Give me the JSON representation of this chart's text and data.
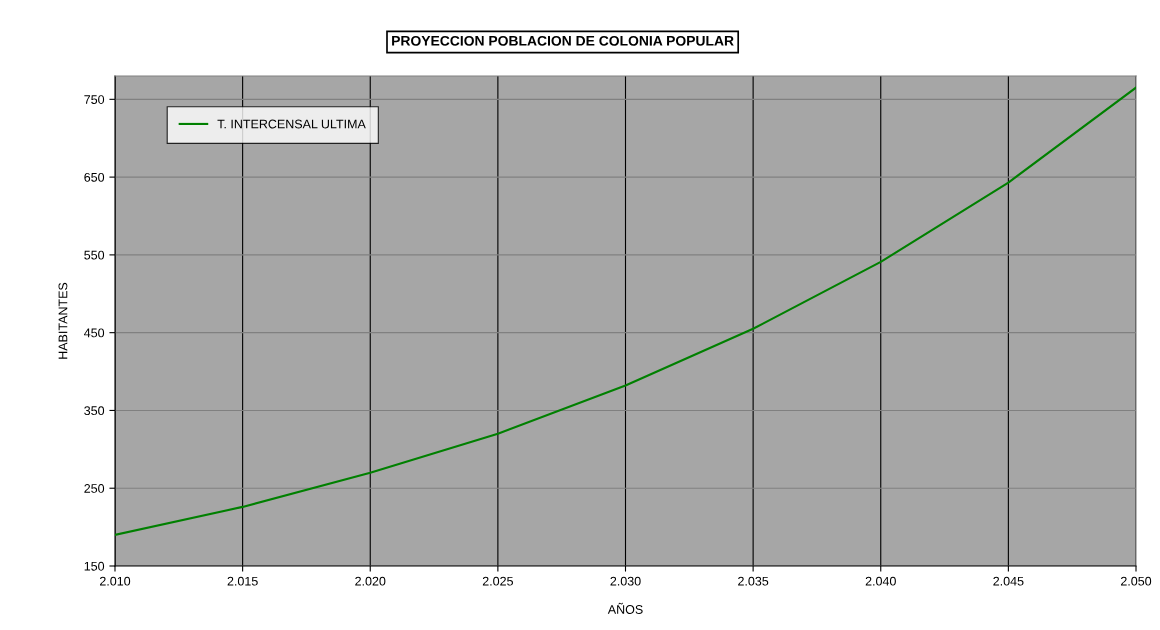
{
  "chart_data": {
    "type": "line",
    "title": "PROYECCION POBLACION DE COLONIA POPULAR",
    "xlabel": "AÑOS",
    "ylabel": "HABITANTES",
    "x": [
      2010,
      2015,
      2020,
      2025,
      2030,
      2035,
      2040,
      2045,
      2050
    ],
    "series": [
      {
        "name": "T. INTERCENSAL ULTIMA",
        "color": "#008000",
        "values": [
          190,
          226,
          270,
          320,
          382,
          455,
          541,
          643,
          765
        ]
      }
    ],
    "xlim": [
      2010,
      2050
    ],
    "xticks": [
      {
        "value": 2010,
        "label": "2.010"
      },
      {
        "value": 2015,
        "label": "2.015"
      },
      {
        "value": 2020,
        "label": "2.020"
      },
      {
        "value": 2025,
        "label": "2.025"
      },
      {
        "value": 2030,
        "label": "2.030"
      },
      {
        "value": 2035,
        "label": "2.035"
      },
      {
        "value": 2040,
        "label": "2.040"
      },
      {
        "value": 2045,
        "label": "2.045"
      },
      {
        "value": 2050,
        "label": "2.050"
      }
    ],
    "ylim": [
      150,
      780
    ],
    "yticks": [
      150,
      250,
      350,
      450,
      550,
      650,
      750
    ],
    "grid": true,
    "legend": "top left",
    "marker": "none",
    "line_style": "solid"
  }
}
